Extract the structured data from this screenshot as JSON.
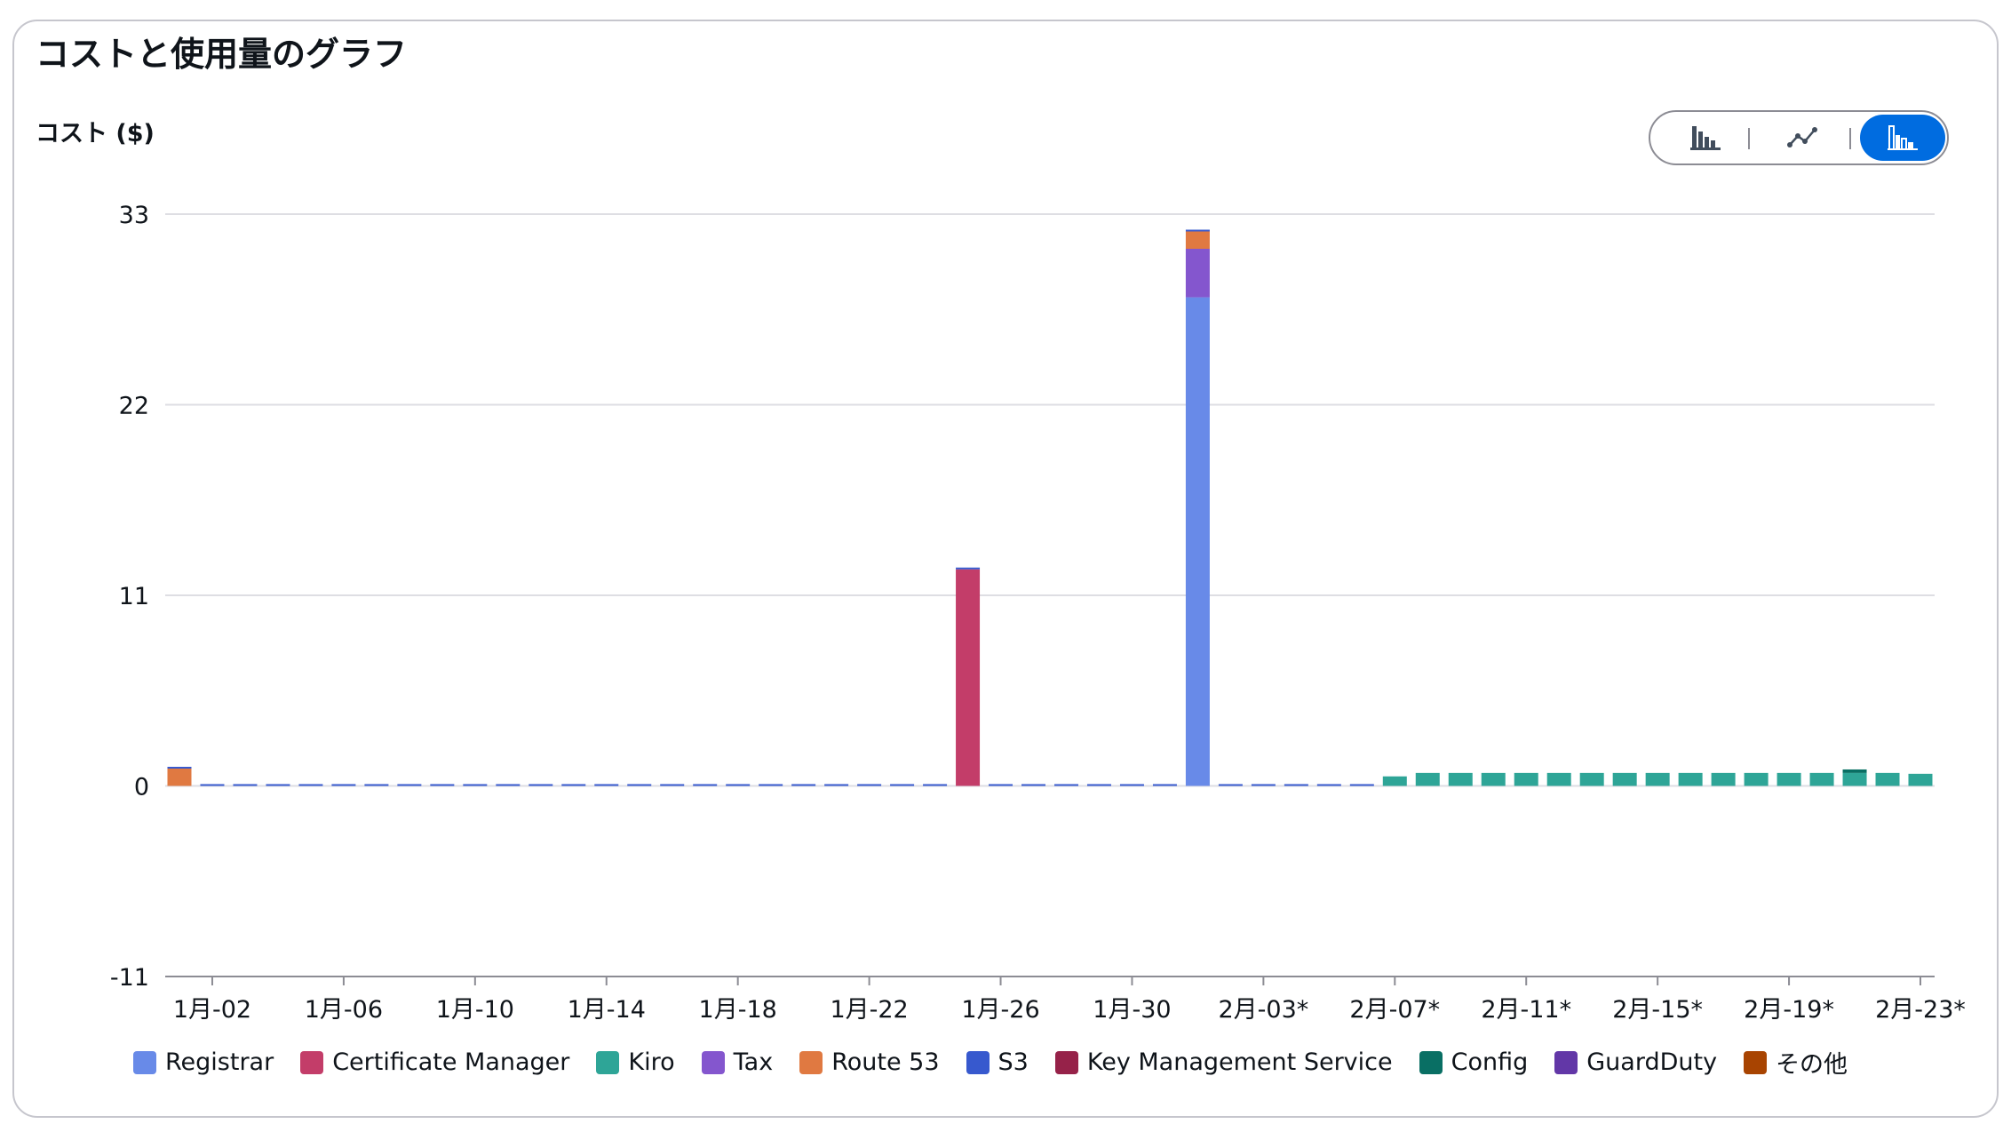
{
  "page": {
    "title": "コストと使用量のグラフ",
    "y_axis_title": "コスト ($)"
  },
  "toggle": [
    {
      "name": "bar-chart-icon",
      "selected": false
    },
    {
      "name": "line-chart-icon",
      "selected": false
    },
    {
      "name": "stacked-bar-chart-icon",
      "selected": true
    }
  ],
  "chart_data": {
    "type": "bar",
    "stacked": true,
    "title": "コストと使用量のグラフ",
    "ylabel": "コスト ($)",
    "ylim": [
      -11,
      33
    ],
    "yticks": [
      -11,
      0,
      11,
      22,
      33
    ],
    "grid": true,
    "legend_position": "bottom",
    "categories": [
      "1月-01",
      "1月-02",
      "1月-03",
      "1月-04",
      "1月-05",
      "1月-06",
      "1月-07",
      "1月-08",
      "1月-09",
      "1月-10",
      "1月-11",
      "1月-12",
      "1月-13",
      "1月-14",
      "1月-15",
      "1月-16",
      "1月-17",
      "1月-18",
      "1月-19",
      "1月-20",
      "1月-21",
      "1月-22",
      "1月-23",
      "1月-24",
      "1月-25",
      "1月-26",
      "1月-27",
      "1月-28",
      "1月-29",
      "1月-30",
      "1月-31",
      "2月-01",
      "2月-02",
      "2月-03*",
      "2月-04*",
      "2月-05*",
      "2月-06*",
      "2月-07*",
      "2月-08*",
      "2月-09*",
      "2月-10*",
      "2月-11*",
      "2月-12*",
      "2月-13*",
      "2月-14*",
      "2月-15*",
      "2月-16*",
      "2月-17*",
      "2月-18*",
      "2月-19*",
      "2月-20*",
      "2月-21*",
      "2月-22*",
      "2月-23*"
    ],
    "xtick_labels": [
      "1月-02",
      "1月-06",
      "1月-10",
      "1月-14",
      "1月-18",
      "1月-22",
      "1月-26",
      "1月-30",
      "2月-03*",
      "2月-07*",
      "2月-11*",
      "2月-15*",
      "2月-19*",
      "2月-23*"
    ],
    "series": [
      {
        "name": "Registrar",
        "color": "#688ae8",
        "values": [
          0,
          0,
          0,
          0,
          0,
          0,
          0,
          0,
          0,
          0,
          0,
          0,
          0,
          0,
          0,
          0,
          0,
          0,
          0,
          0,
          0,
          0,
          0,
          0,
          0,
          0,
          0,
          0,
          0,
          0,
          0,
          28.2,
          0,
          0,
          0,
          0,
          0,
          0,
          0,
          0,
          0,
          0,
          0,
          0,
          0,
          0,
          0,
          0,
          0,
          0,
          0,
          0,
          0,
          0
        ]
      },
      {
        "name": "Certificate Manager",
        "color": "#c33d69",
        "values": [
          0,
          0,
          0,
          0,
          0,
          0,
          0,
          0,
          0,
          0,
          0,
          0,
          0,
          0,
          0,
          0,
          0,
          0,
          0,
          0,
          0,
          0,
          0,
          0,
          12.5,
          0,
          0,
          0,
          0,
          0,
          0,
          0,
          0,
          0,
          0,
          0,
          0,
          0,
          0,
          0,
          0,
          0,
          0,
          0,
          0,
          0,
          0,
          0,
          0,
          0,
          0,
          0,
          0,
          0
        ]
      },
      {
        "name": "Kiro",
        "color": "#2ea597",
        "values": [
          0,
          0,
          0,
          0,
          0,
          0,
          0,
          0,
          0,
          0,
          0,
          0,
          0,
          0,
          0,
          0,
          0,
          0,
          0,
          0,
          0,
          0,
          0,
          0,
          0,
          0,
          0,
          0,
          0,
          0,
          0,
          0,
          0,
          0,
          0,
          0,
          0,
          0.55,
          0.75,
          0.75,
          0.75,
          0.75,
          0.75,
          0.75,
          0.75,
          0.75,
          0.75,
          0.75,
          0.75,
          0.75,
          0.75,
          0.75,
          0.75,
          0.7
        ]
      },
      {
        "name": "Tax",
        "color": "#8456ce",
        "values": [
          0,
          0,
          0,
          0,
          0,
          0,
          0,
          0,
          0,
          0,
          0,
          0,
          0,
          0,
          0,
          0,
          0,
          0,
          0,
          0,
          0,
          0,
          0,
          0,
          0,
          0,
          0,
          0,
          0,
          0,
          0,
          2.8,
          0,
          0,
          0,
          0,
          0,
          0,
          0,
          0,
          0,
          0,
          0,
          0,
          0,
          0,
          0,
          0,
          0,
          0,
          0,
          0,
          0,
          0
        ]
      },
      {
        "name": "Route 53",
        "color": "#e07941",
        "values": [
          1.0,
          0,
          0,
          0,
          0,
          0,
          0,
          0,
          0,
          0,
          0,
          0,
          0,
          0,
          0,
          0,
          0,
          0,
          0,
          0,
          0,
          0,
          0,
          0,
          0,
          0,
          0,
          0,
          0,
          0,
          0,
          1.0,
          0,
          0,
          0,
          0,
          0,
          0,
          0,
          0,
          0,
          0,
          0,
          0,
          0,
          0,
          0,
          0,
          0,
          0,
          0,
          0,
          0,
          0
        ]
      },
      {
        "name": "S3",
        "color": "#3759ce",
        "values": [
          0.05,
          0.05,
          0.05,
          0.05,
          0.05,
          0.05,
          0.05,
          0.05,
          0.05,
          0.05,
          0.05,
          0.05,
          0.05,
          0.05,
          0.05,
          0.05,
          0.05,
          0.05,
          0.05,
          0.05,
          0.05,
          0.05,
          0.05,
          0.05,
          0.05,
          0.05,
          0.05,
          0.05,
          0.05,
          0.05,
          0.05,
          0.05,
          0.05,
          0.05,
          0.05,
          0.05,
          0.05,
          0,
          0,
          0,
          0,
          0,
          0,
          0,
          0,
          0,
          0,
          0,
          0,
          0,
          0,
          0,
          0,
          0
        ]
      },
      {
        "name": "Key Management Service",
        "color": "#962249",
        "values": [
          0,
          0,
          0,
          0,
          0,
          0,
          0,
          0,
          0,
          0,
          0,
          0,
          0,
          0,
          0,
          0,
          0,
          0,
          0,
          0,
          0,
          0,
          0,
          0,
          0,
          0,
          0,
          0,
          0,
          0,
          0,
          0,
          0,
          0,
          0,
          0,
          0,
          0,
          0,
          0,
          0,
          0,
          0,
          0,
          0,
          0,
          0,
          0,
          0,
          0,
          0,
          0,
          0,
          0
        ]
      },
      {
        "name": "Config",
        "color": "#096f64",
        "values": [
          0,
          0,
          0,
          0,
          0,
          0,
          0,
          0,
          0,
          0,
          0,
          0,
          0,
          0,
          0,
          0,
          0,
          0,
          0,
          0,
          0,
          0,
          0,
          0,
          0,
          0,
          0,
          0,
          0,
          0,
          0,
          0,
          0,
          0,
          0,
          0,
          0,
          0,
          0,
          0,
          0,
          0,
          0,
          0,
          0,
          0,
          0,
          0,
          0,
          0,
          0,
          0.2,
          0,
          0
        ]
      },
      {
        "name": "GuardDuty",
        "color": "#6237a7",
        "values": [
          0,
          0,
          0,
          0,
          0,
          0,
          0,
          0,
          0,
          0,
          0,
          0,
          0,
          0,
          0,
          0,
          0,
          0,
          0,
          0,
          0,
          0,
          0,
          0,
          0,
          0,
          0,
          0,
          0,
          0,
          0,
          0,
          0,
          0,
          0,
          0,
          0,
          0,
          0,
          0,
          0,
          0,
          0,
          0,
          0,
          0,
          0,
          0,
          0,
          0,
          0,
          0,
          0,
          0
        ]
      },
      {
        "name": "その他",
        "color": "#a84401",
        "values": [
          0,
          0,
          0,
          0,
          0,
          0,
          0,
          0,
          0,
          0,
          0,
          0,
          0,
          0,
          0,
          0,
          0,
          0,
          0,
          0,
          0,
          0,
          0,
          0,
          0,
          0,
          0,
          0,
          0,
          0,
          0,
          0,
          0,
          0,
          0,
          0,
          0,
          0,
          0,
          0,
          0,
          0,
          0,
          0,
          0,
          0,
          0,
          0,
          0,
          0,
          0,
          0,
          0,
          0
        ]
      }
    ]
  }
}
